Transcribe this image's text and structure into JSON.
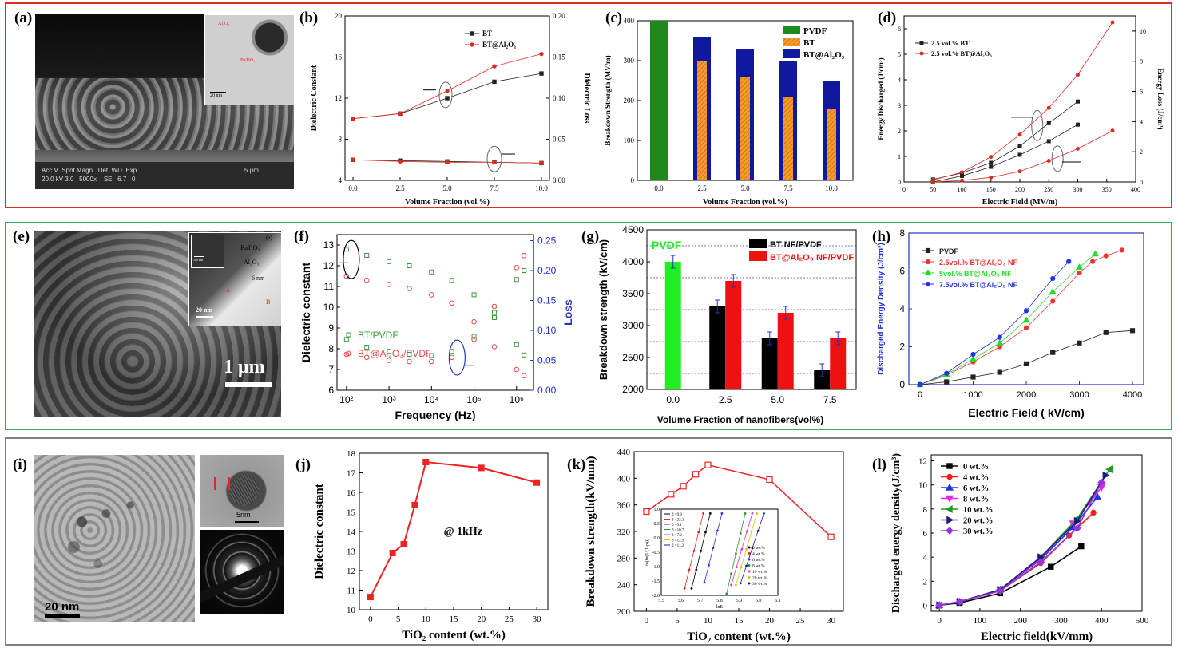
{
  "panels": {
    "a": "(a)",
    "b": "(b)",
    "c": "(c)",
    "d": "(d)",
    "e": "(e)",
    "f": "(f)",
    "g": "(g)",
    "h": "(h)",
    "i": "(i)",
    "j": "(j)",
    "k": "(k)",
    "l": "(l)"
  },
  "micrographs": {
    "a": {
      "inset_labels": [
        "Al₂O₃",
        "BaTiO₃"
      ],
      "inset_scale": "20 nm",
      "databar_head": "Acc.V  Spot Magn   Det  WD  Exp",
      "databar_vals": "20.0 kV 3.0   5000x    SE   6.7   0",
      "scale": "5 μm"
    },
    "e": {
      "inset_tag": "(a)",
      "inset_labels": [
        "BaTiO₃",
        "Al₂O₃",
        "6 nm",
        "A",
        "B"
      ],
      "inset_scale": "20 nm",
      "inset_small_scale": "100 nm",
      "scale": "1 μm"
    },
    "i": {
      "scale": "20 nm",
      "inset_scale": "5nm"
    }
  },
  "chart_data": [
    {
      "id": "b",
      "type": "line",
      "xlabel": "Volume Fraction (vol.%)",
      "ylabel": "Dielectric Constant",
      "y2label": "Dielectric Loss",
      "x": [
        0.0,
        2.5,
        5.0,
        7.5,
        10.0
      ],
      "xticks": [
        "0.0",
        "2.5",
        "5.0",
        "7.5",
        "10.0"
      ],
      "ylim": [
        4,
        20
      ],
      "yticks": [
        "4",
        "8",
        "12",
        "16",
        "20"
      ],
      "y2lim": [
        0.0,
        0.2
      ],
      "y2ticks": [
        "0.00",
        "0.05",
        "0.10",
        "0.15",
        "0.20"
      ],
      "legend": "top-right",
      "series": [
        {
          "name": "BT",
          "axis": "left",
          "color": "#222222",
          "values": [
            10.0,
            10.5,
            12.0,
            13.6,
            14.4
          ]
        },
        {
          "name": "BT@Al₂O₃",
          "axis": "left",
          "color": "#e02a1e",
          "values": [
            10.0,
            10.5,
            12.7,
            15.1,
            16.3
          ]
        },
        {
          "name": "",
          "axis": "right",
          "color": "#222222",
          "values": [
            0.025,
            0.024,
            0.023,
            0.022,
            0.021
          ]
        },
        {
          "name": "",
          "axis": "right",
          "color": "#e02a1e",
          "values": [
            0.025,
            0.023,
            0.022,
            0.022,
            0.021
          ]
        }
      ]
    },
    {
      "id": "c",
      "type": "bar",
      "xlabel": "Volume Fraction (vol.%)",
      "ylabel": "Breakdown Strength (MV/m)",
      "categories": [
        "0.0",
        "2.5",
        "5.0",
        "7.5",
        "10.0"
      ],
      "ylim": [
        0,
        400
      ],
      "yticks": [
        "0",
        "100",
        "200",
        "300",
        "400"
      ],
      "legend": "top-right",
      "series": [
        {
          "name": "PVDF",
          "color": "#1e8a1e",
          "values": [
            400,
            null,
            null,
            null,
            null
          ]
        },
        {
          "name": "BT",
          "color": "#f08a1a",
          "values": [
            null,
            300,
            260,
            210,
            180
          ]
        },
        {
          "name": "BT@Al₂O₃",
          "color": "#1018a0",
          "values": [
            null,
            360,
            330,
            300,
            250
          ]
        }
      ]
    },
    {
      "id": "d",
      "type": "line",
      "xlabel": "Electric Field (MV/m)",
      "ylabel": "Energy Discharged (J/cm³)",
      "y2label": "Energy Loss (J/cm³)",
      "xlim": [
        0,
        400
      ],
      "xticks": [
        "0",
        "50",
        "100",
        "150",
        "200",
        "250",
        "300",
        "350",
        "400"
      ],
      "ylim": [
        0,
        6.5
      ],
      "yticks": [
        "0",
        "1",
        "2",
        "3",
        "4",
        "5",
        "6"
      ],
      "y2lim": [
        0,
        11
      ],
      "y2ticks": [
        "0",
        "2",
        "4",
        "6",
        "8",
        "10"
      ],
      "legend": "top-left",
      "series": [
        {
          "name": "2.5 vol.% BT",
          "axis": "left",
          "color": "#222222",
          "x": [
            50,
            100,
            150,
            200,
            250,
            300
          ],
          "values": [
            0.1,
            0.35,
            0.75,
            1.4,
            2.3,
            3.15
          ]
        },
        {
          "name": "2.5 vol.% BT@Al₂O₃",
          "axis": "left",
          "color": "#e02a1e",
          "x": [
            50,
            100,
            150,
            200,
            250,
            300,
            360
          ],
          "values": [
            0.08,
            0.38,
            0.98,
            1.85,
            2.9,
            4.2,
            6.25
          ]
        },
        {
          "name": "",
          "axis": "right",
          "color": "#222222",
          "x": [
            50,
            100,
            150,
            200,
            250,
            300
          ],
          "values": [
            0.0,
            0.4,
            1.0,
            1.8,
            2.7,
            3.8
          ]
        },
        {
          "name": "",
          "axis": "right",
          "color": "#e02a1e",
          "x": [
            50,
            100,
            150,
            200,
            250,
            300,
            360
          ],
          "values": [
            0.0,
            0.1,
            0.3,
            0.7,
            1.4,
            2.2,
            3.4
          ]
        }
      ]
    },
    {
      "id": "f",
      "type": "scatter",
      "xlabel": "Frequency (Hz)",
      "ylabel": "Dielectric constant",
      "y2label": "Loss",
      "xlog": true,
      "xlim": [
        60,
        2500000
      ],
      "xticks": [
        "10²",
        "10³",
        "10⁴",
        "10⁵",
        "10⁶"
      ],
      "ylim": [
        6,
        13.5
      ],
      "yticks": [
        "6",
        "7",
        "8",
        "9",
        "10",
        "11",
        "12",
        "13"
      ],
      "y2lim": [
        0.0,
        0.26
      ],
      "y2ticks": [
        "0.00",
        "0.05",
        "0.10",
        "0.15",
        "0.20",
        "0.25"
      ],
      "legend": "center-left",
      "series": [
        {
          "name": "BT/PVDF",
          "axis": "left",
          "color": "#3a9a3a",
          "x": [
            100,
            300,
            1000,
            3000,
            10000,
            30000,
            100000,
            300000,
            1000000,
            1500000
          ],
          "values": [
            12.8,
            12.5,
            12.2,
            12.0,
            11.7,
            11.3,
            10.6,
            9.5,
            8.2,
            7.7
          ]
        },
        {
          "name": "BT@Al₂O₃/PVDF",
          "axis": "left",
          "color": "#e84a4a",
          "x": [
            100,
            300,
            1000,
            3000,
            10000,
            30000,
            100000,
            300000,
            1000000,
            1500000
          ],
          "values": [
            11.5,
            11.3,
            11.1,
            10.9,
            10.6,
            10.2,
            9.3,
            8.1,
            7.0,
            6.7
          ]
        },
        {
          "name": "",
          "axis": "right",
          "color": "#3a9a3a",
          "x": [
            100,
            300,
            1000,
            3000,
            10000,
            30000,
            100000,
            300000,
            1000000,
            1500000
          ],
          "values": [
            0.085,
            0.072,
            0.065,
            0.06,
            0.058,
            0.065,
            0.09,
            0.13,
            0.185,
            0.2
          ]
        },
        {
          "name": "",
          "axis": "right",
          "color": "#e84a4a",
          "x": [
            100,
            300,
            1000,
            3000,
            10000,
            30000,
            100000,
            300000,
            1000000,
            1500000
          ],
          "values": [
            0.06,
            0.055,
            0.05,
            0.048,
            0.048,
            0.055,
            0.085,
            0.14,
            0.205,
            0.225
          ]
        }
      ]
    },
    {
      "id": "g",
      "type": "bar",
      "xlabel": "Volume Fraction of nanofibers(vol%)",
      "ylabel": "Breakdown strength (kV/cm)",
      "categories": [
        "0.0",
        "2.5",
        "5.0",
        "7.5"
      ],
      "ylim": [
        2000,
        4500
      ],
      "yticks": [
        "2000",
        "2500",
        "3000",
        "3500",
        "4000",
        "4500"
      ],
      "legend": "top-right",
      "series": [
        {
          "name": "PVDF",
          "color": "#22ee22",
          "values": [
            4000,
            null,
            null,
            null
          ],
          "errors": [
            100,
            null,
            null,
            null
          ]
        },
        {
          "name": "BT NF/PVDF",
          "color": "#000000",
          "values": [
            null,
            3300,
            2800,
            2300
          ],
          "errors": [
            null,
            100,
            100,
            100
          ]
        },
        {
          "name": "BT@Al₂O₃ NF/PVDF",
          "color": "#ee1111",
          "values": [
            null,
            3700,
            3200,
            2800
          ],
          "errors": [
            null,
            100,
            100,
            100
          ]
        }
      ]
    },
    {
      "id": "h",
      "type": "line",
      "xlabel": "Electric Field ( kV/cm)",
      "ylabel": "Discharged Energy Density (J/cm³)",
      "xlim": [
        0,
        4000
      ],
      "xticks": [
        "0",
        "1000",
        "2000",
        "3000",
        "4000"
      ],
      "ylim": [
        0,
        8
      ],
      "yticks": [
        "0",
        "2",
        "4",
        "6",
        "8"
      ],
      "legend": "top-left",
      "series": [
        {
          "name": "PVDF",
          "color": "#222222",
          "marker": "square",
          "x": [
            0,
            500,
            1000,
            1500,
            2000,
            2500,
            3000,
            3500,
            4000
          ],
          "values": [
            0,
            0.15,
            0.4,
            0.65,
            1.1,
            1.7,
            2.2,
            2.75,
            2.85
          ]
        },
        {
          "name": "2.5vol.% BT@Al₂O₃ NF",
          "color": "#ee3333",
          "marker": "circle",
          "x": [
            0,
            500,
            1000,
            1500,
            2000,
            2500,
            3000,
            3250,
            3500,
            3800
          ],
          "values": [
            0,
            0.5,
            1.2,
            2.0,
            3.0,
            4.4,
            5.9,
            6.5,
            6.8,
            7.1
          ]
        },
        {
          "name": "5vol.% BT@Al₂O₃ NF",
          "color": "#22dd22",
          "marker": "triangle",
          "x": [
            0,
            500,
            1000,
            1500,
            2000,
            2500,
            3000,
            3300
          ],
          "values": [
            0,
            0.55,
            1.35,
            2.2,
            3.4,
            4.9,
            6.2,
            6.9
          ]
        },
        {
          "name": "7.5vol.% BT@Al₂O₃ NF",
          "color": "#2233ee",
          "marker": "hexagon",
          "x": [
            0,
            500,
            1000,
            1500,
            2000,
            2500,
            2800
          ],
          "values": [
            0,
            0.6,
            1.6,
            2.5,
            3.9,
            5.6,
            6.5
          ]
        }
      ]
    },
    {
      "id": "j",
      "type": "line",
      "xlabel": "TiO₂ content (wt.%)",
      "ylabel": "Dielectric constant",
      "annotation": "@ 1kHz",
      "xlim": [
        -2,
        32
      ],
      "xticks": [
        "0",
        "5",
        "10",
        "15",
        "20",
        "25",
        "30"
      ],
      "ylim": [
        10,
        18
      ],
      "yticks": [
        "10",
        "11",
        "12",
        "13",
        "14",
        "15",
        "16",
        "17",
        "18"
      ],
      "series": [
        {
          "name": "",
          "color": "#ee2222",
          "x": [
            0,
            4,
            6,
            8,
            10,
            20,
            30
          ],
          "values": [
            10.65,
            12.9,
            13.35,
            15.35,
            17.55,
            17.25,
            16.5
          ]
        }
      ]
    },
    {
      "id": "k",
      "type": "line",
      "xlabel": "TiO₂ content (wt.%)",
      "ylabel": "Breakdown strength(kV/mm)",
      "xlim": [
        -2,
        32
      ],
      "xticks": [
        "0",
        "5",
        "10",
        "15",
        "20",
        "25",
        "30"
      ],
      "ylim": [
        200,
        440
      ],
      "yticks": [
        "200",
        "240",
        "280",
        "320",
        "360",
        "400",
        "440"
      ],
      "series": [
        {
          "name": "",
          "color": "#ee2222",
          "x": [
            0,
            4,
            6,
            8,
            10,
            20,
            30
          ],
          "values": [
            350,
            376,
            388,
            406,
            420,
            398,
            312
          ]
        }
      ],
      "inset": {
        "xlabel": "lnE",
        "ylabel": "ln(ln(1/(1-p)))",
        "xticks": [
          "5.5",
          "5.6",
          "5.7",
          "5.8",
          "5.9",
          "6.0",
          "6.1"
        ],
        "yticks": [
          "1.0",
          "0.5",
          "0.0",
          "-0.5",
          "-1.0",
          "-1.5",
          "-2.0"
        ],
        "beta_legend": [
          "β =9.9",
          "β =22.1",
          "β =9.1",
          "β =10.7",
          "β =7.2",
          "β =12.9",
          "β =11.2"
        ],
        "sample_legend": [
          "0 wt.%",
          "4 wt.%",
          "6 wt.%",
          "8 wt.%",
          "10 wt.%",
          "20 wt.%",
          "30 wt.%"
        ],
        "colors": [
          "#000000",
          "#ee2222",
          "#2233ee",
          "#229922",
          "#ee22ee",
          "#cccc00",
          "#1a1a80"
        ]
      }
    },
    {
      "id": "l",
      "type": "line",
      "xlabel": "Electric field(kV/mm)",
      "ylabel": "Discharged energy density(J/cm³)",
      "xlim": [
        -20,
        500
      ],
      "xticks": [
        "0",
        "100",
        "200",
        "300",
        "400",
        "500"
      ],
      "ylim": [
        -0.5,
        12.5
      ],
      "yticks": [
        "0",
        "2",
        "4",
        "6",
        "8",
        "10",
        "12"
      ],
      "legend": "top-left",
      "series": [
        {
          "name": "0 wt.%",
          "color": "#000000",
          "marker": "square",
          "x": [
            0,
            50,
            150,
            275,
            350
          ],
          "values": [
            0,
            0.2,
            1.0,
            3.2,
            4.9
          ]
        },
        {
          "name": "4 wt.%",
          "color": "#ee2222",
          "marker": "circle",
          "x": [
            0,
            50,
            150,
            250,
            320,
            380
          ],
          "values": [
            0,
            0.3,
            1.2,
            3.5,
            5.8,
            7.7
          ]
        },
        {
          "name": "6 wt.%",
          "color": "#2233ee",
          "marker": "triangle",
          "x": [
            0,
            50,
            150,
            250,
            330,
            390
          ],
          "values": [
            0,
            0.3,
            1.3,
            3.8,
            6.5,
            9.0
          ]
        },
        {
          "name": "8 wt.%",
          "color": "#ee22ee",
          "marker": "triangle-down",
          "x": [
            0,
            50,
            150,
            250,
            330,
            400
          ],
          "values": [
            0,
            0.3,
            1.3,
            3.9,
            6.8,
            9.8
          ]
        },
        {
          "name": "10 wt.%",
          "color": "#229922",
          "marker": "triangle-left",
          "x": [
            0,
            50,
            150,
            250,
            340,
            420
          ],
          "values": [
            0,
            0.3,
            1.3,
            4.0,
            7.2,
            11.3
          ]
        },
        {
          "name": "20 wt.%",
          "color": "#1a1a80",
          "marker": "triangle-right",
          "x": [
            0,
            50,
            150,
            250,
            340,
            410
          ],
          "values": [
            0,
            0.3,
            1.3,
            4.0,
            7.0,
            10.8
          ]
        },
        {
          "name": "30 wt.%",
          "color": "#9933dd",
          "marker": "diamond",
          "x": [
            0,
            50,
            150,
            250,
            340,
            400
          ],
          "values": [
            0,
            0.3,
            1.2,
            3.6,
            6.4,
            10.2
          ]
        }
      ]
    }
  ]
}
